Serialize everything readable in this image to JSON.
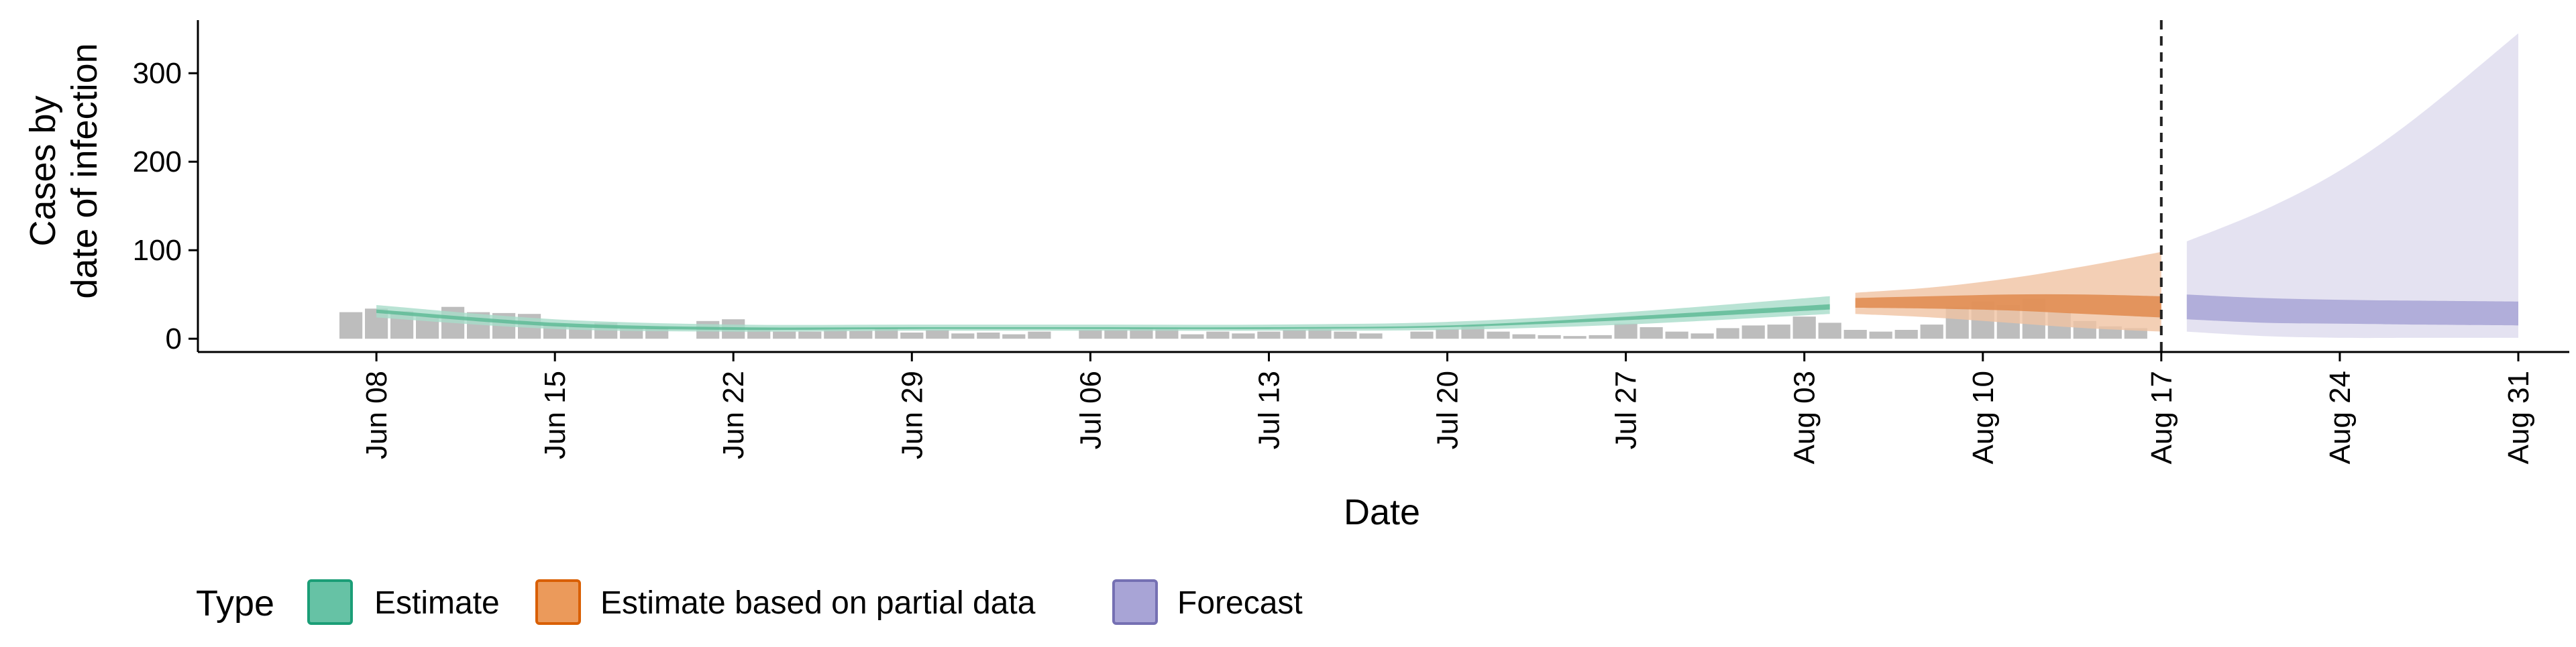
{
  "chart_data": {
    "type": "area",
    "xlabel": "Date",
    "ylabel_lines": [
      "Cases by",
      "date of infection"
    ],
    "y_ticks": [
      0,
      100,
      200,
      300
    ],
    "ylim": [
      -15,
      360
    ],
    "xlim": [
      "2020-06-01",
      "2020-09-02"
    ],
    "x_ticks": [
      {
        "date": "2020-06-08",
        "label": "Jun 08"
      },
      {
        "date": "2020-06-15",
        "label": "Jun 15"
      },
      {
        "date": "2020-06-22",
        "label": "Jun 22"
      },
      {
        "date": "2020-06-29",
        "label": "Jun 29"
      },
      {
        "date": "2020-07-06",
        "label": "Jul 06"
      },
      {
        "date": "2020-07-13",
        "label": "Jul 13"
      },
      {
        "date": "2020-07-20",
        "label": "Jul 20"
      },
      {
        "date": "2020-07-27",
        "label": "Jul 27"
      },
      {
        "date": "2020-08-03",
        "label": "Aug 03"
      },
      {
        "date": "2020-08-10",
        "label": "Aug 10"
      },
      {
        "date": "2020-08-17",
        "label": "Aug 17"
      },
      {
        "date": "2020-08-24",
        "label": "Aug 24"
      },
      {
        "date": "2020-08-31",
        "label": "Aug 31"
      }
    ],
    "vline_date": "2020-08-17",
    "grid": false,
    "legend": {
      "title": "Type",
      "position": "bottom",
      "entries": [
        {
          "label": "Estimate",
          "fill": "#66c2a5",
          "stroke": "#1b9e77"
        },
        {
          "label": "Estimate based on partial data",
          "fill": "#eb9a5b",
          "stroke": "#d95f02"
        },
        {
          "label": "Forecast",
          "fill": "#a8a4d6",
          "stroke": "#7570b3"
        }
      ]
    },
    "observed_cases": {
      "start_date": "2020-06-07",
      "color": "#bdbdbd",
      "values": [
        30,
        34,
        31,
        25,
        36,
        30,
        29,
        28,
        16,
        14,
        18,
        12,
        13,
        0,
        20,
        22,
        12,
        8,
        8,
        10,
        9,
        12,
        7,
        10,
        6,
        7,
        5,
        8,
        0,
        10,
        10,
        12,
        11,
        5,
        8,
        6,
        8,
        10,
        11,
        8,
        6,
        0,
        8,
        11,
        14,
        8,
        5,
        4,
        3,
        4,
        17,
        13,
        8,
        6,
        12,
        15,
        16,
        25,
        18,
        10,
        8,
        10,
        16,
        36,
        42,
        38,
        45,
        30,
        20,
        14,
        12
      ]
    },
    "series": [
      {
        "name": "Estimate",
        "outer_fill": "#a8dcc9",
        "inner_fill": "#5fbb97",
        "dates": [
          "2020-06-08",
          "2020-06-15",
          "2020-06-22",
          "2020-06-29",
          "2020-07-06",
          "2020-07-13",
          "2020-07-20",
          "2020-07-27",
          "2020-08-04"
        ],
        "lower90": [
          24,
          11,
          8,
          9,
          9,
          9,
          10,
          16,
          28
        ],
        "upper90": [
          38,
          22,
          16,
          16,
          16,
          16,
          19,
          30,
          48
        ],
        "lower50": [
          29,
          14,
          10,
          11,
          11,
          11,
          13,
          21,
          33
        ],
        "upper50": [
          33,
          18,
          13,
          13,
          13,
          13,
          15,
          25,
          39
        ]
      },
      {
        "name": "Estimate based on partial data",
        "outer_fill": "#f0c3a2",
        "inner_fill": "#df8a4e",
        "dates": [
          "2020-08-05",
          "2020-08-08",
          "2020-08-11",
          "2020-08-14",
          "2020-08-17"
        ],
        "lower90": [
          28,
          24,
          18,
          12,
          8
        ],
        "upper90": [
          52,
          58,
          68,
          82,
          98
        ],
        "lower50": [
          35,
          34,
          32,
          28,
          24
        ],
        "upper50": [
          46,
          48,
          50,
          50,
          48
        ]
      },
      {
        "name": "Forecast",
        "outer_fill": "#dddbee",
        "inner_fill": "#a8a4d6",
        "dates": [
          "2020-08-18",
          "2020-08-21",
          "2020-08-24",
          "2020-08-27",
          "2020-08-31"
        ],
        "lower90": [
          8,
          3,
          1,
          1,
          1
        ],
        "upper90": [
          110,
          145,
          190,
          250,
          345
        ],
        "lower50": [
          22,
          18,
          17,
          16,
          15
        ],
        "upper50": [
          50,
          46,
          44,
          43,
          42
        ]
      }
    ]
  }
}
